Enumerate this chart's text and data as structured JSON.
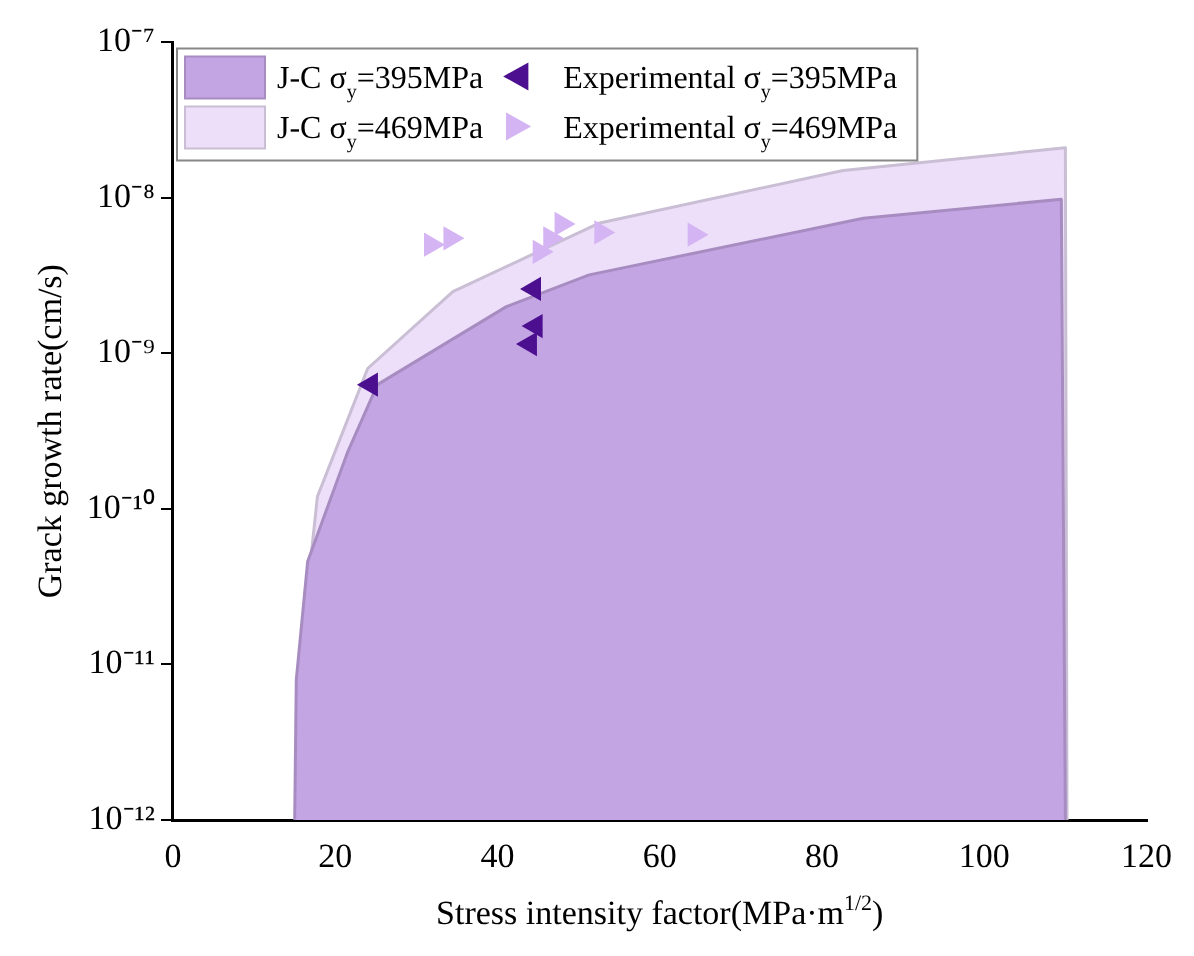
{
  "chart_data": {
    "type": "area",
    "xlabel": "Stress intensity factor(MPa·m$^{1/2}$)",
    "ylabel": "Grack growth rate(cm/s)",
    "log": "y",
    "xlim": [
      0,
      120
    ],
    "xticks": [
      0,
      20,
      40,
      60,
      80,
      100,
      120
    ],
    "ylim": [
      1e-12,
      1e-07
    ],
    "yticks": [
      {
        "value": 1e-12,
        "label": "10⁻¹²"
      },
      {
        "value": 1e-11,
        "label": "10⁻¹¹"
      },
      {
        "value": 1e-10,
        "label": "10⁻¹⁰"
      },
      {
        "value": 1e-09,
        "label": "10⁻⁹"
      },
      {
        "value": 1e-08,
        "label": "10⁻⁸"
      },
      {
        "value": 1e-07,
        "label": "10⁻⁷"
      }
    ],
    "grid": false,
    "legend": "top left",
    "series": [
      {
        "name": "J-C σ$_{y}$=395MPa",
        "color": "#c4a5e3",
        "x": [
          15,
          15.2,
          16.6,
          21.5,
          25.2,
          41.1,
          51.3,
          85.1,
          109.5,
          110
        ],
        "values": [
          1e-12,
          8e-12,
          4.6e-11,
          2.3e-10,
          6.3e-10,
          2e-09,
          3.2e-09,
          7.4e-09,
          9.8e-09,
          1e-12
        ]
      },
      {
        "name": "J-C σ$_{y}$=469MPa",
        "color": "#eddff9",
        "x": [
          15.3,
          15.6,
          17.8,
          24,
          34.5,
          52.6,
          82.6,
          110,
          110.2
        ],
        "values": [
          1e-12,
          1e-11,
          1.2e-10,
          8e-10,
          2.5e-09,
          6.9e-09,
          1.5e-08,
          2.1e-08,
          1e-12
        ]
      },
      {
        "name": "Experimental σ$_{y}$=395MPa",
        "type": "scatter",
        "marker": "triangle-left",
        "color": "#4b0f8f",
        "x": [
          24.4,
          44.5,
          44.7,
          44
        ],
        "values": [
          6.3e-10,
          2.6e-09,
          1.5e-09,
          1.15e-09
        ]
      },
      {
        "name": "Experimental σ$_{y}$=469MPa",
        "type": "scatter",
        "marker": "triangle-right",
        "color": "#d5b4f3",
        "x": [
          31.8,
          34.2,
          45.2,
          46.5,
          47.9,
          52.8,
          64.3
        ],
        "values": [
          5e-09,
          5.5e-09,
          4.5e-09,
          5.5e-09,
          6.8e-09,
          6e-09,
          5.8e-09
        ]
      }
    ]
  }
}
